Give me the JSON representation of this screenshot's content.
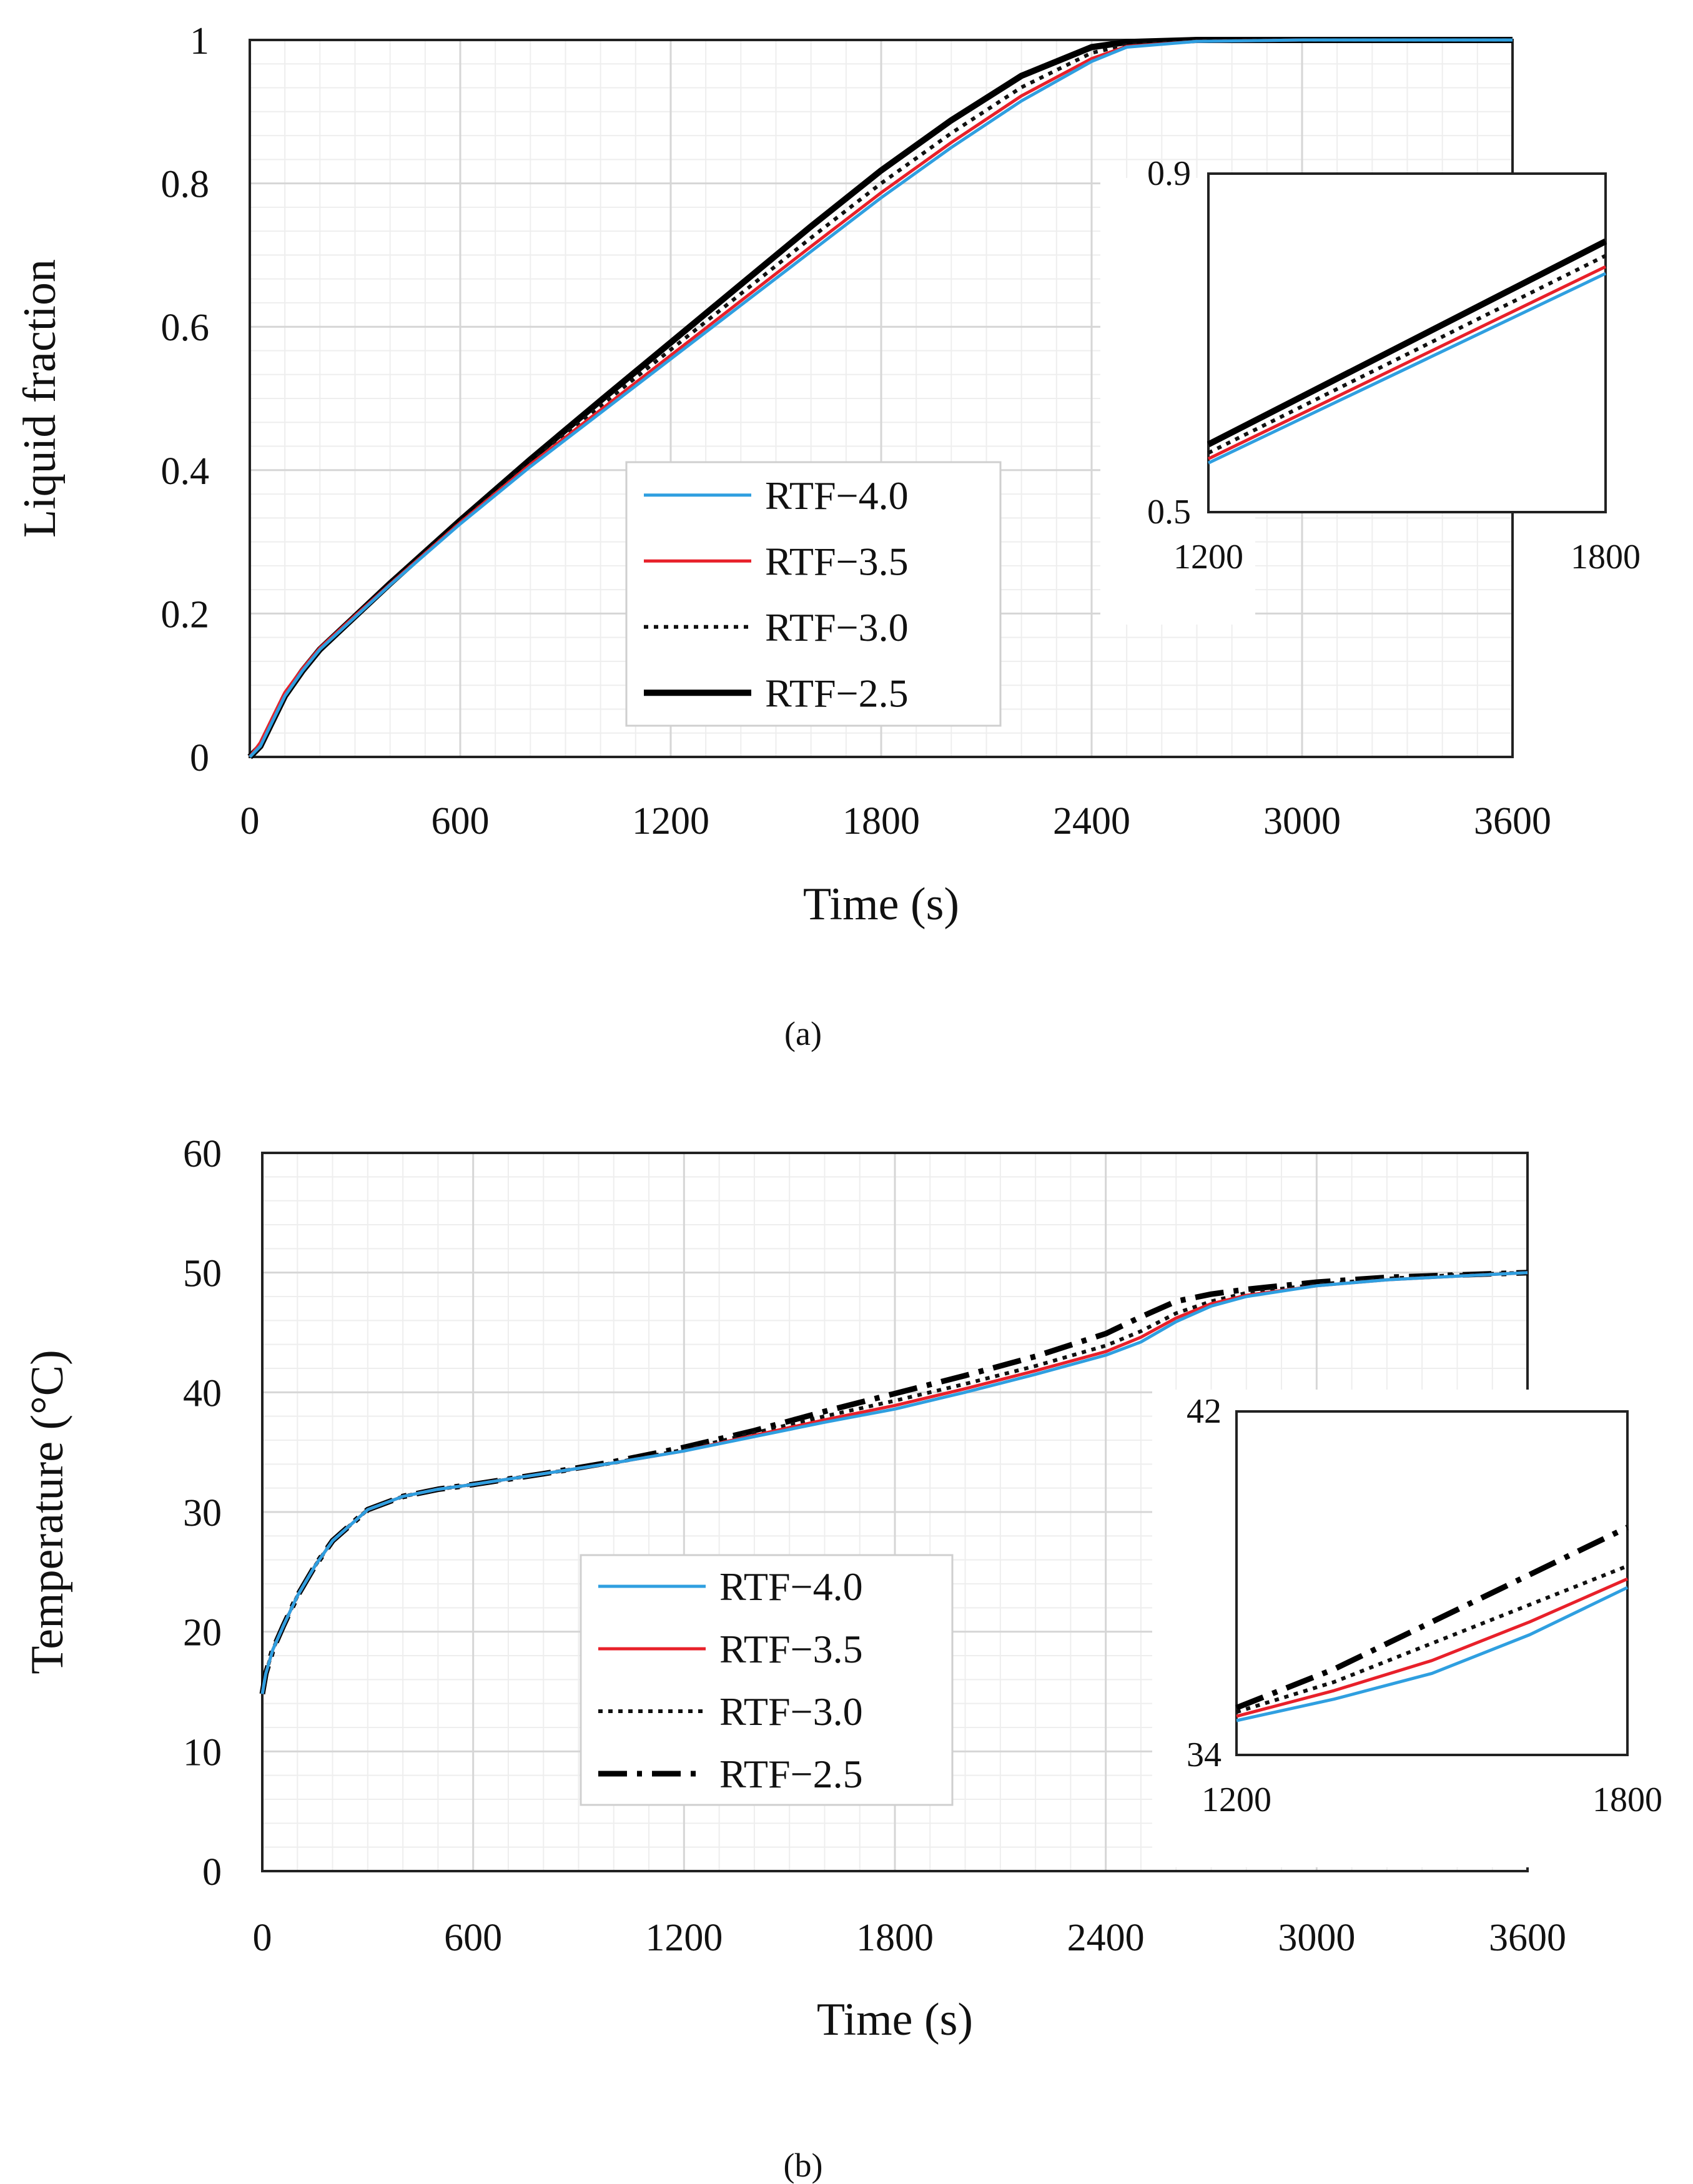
{
  "chart_data": [
    {
      "id": "a",
      "type": "line",
      "caption": "(a)",
      "xlabel": "Time (s)",
      "ylabel": "Liquid fraction",
      "xlim": [
        0,
        3600
      ],
      "ylim": [
        0,
        1
      ],
      "x_ticks": [
        0,
        600,
        1200,
        1800,
        2400,
        3000,
        3600
      ],
      "y_ticks": [
        0,
        0.2,
        0.4,
        0.6,
        0.8,
        1
      ],
      "y_tick_labels": [
        "0",
        "0.2",
        "0.4",
        "0.6",
        "0.8",
        "1"
      ],
      "grid": true,
      "legend_position": "center-bottom",
      "series": [
        {
          "name": "RTF−4.0",
          "color": "#2f9fe0",
          "style": "solid-thin",
          "x": [
            0,
            30,
            60,
            100,
            150,
            200,
            300,
            400,
            600,
            800,
            1000,
            1200,
            1400,
            1600,
            1800,
            2000,
            2200,
            2400,
            2500,
            2700,
            3000,
            3600
          ],
          "y": [
            0,
            0.015,
            0.045,
            0.085,
            0.12,
            0.15,
            0.195,
            0.24,
            0.325,
            0.405,
            0.48,
            0.555,
            0.63,
            0.705,
            0.78,
            0.85,
            0.915,
            0.97,
            0.99,
            0.998,
            1,
            1
          ]
        },
        {
          "name": "RTF−3.5",
          "color": "#e8202a",
          "style": "solid-thin",
          "x": [
            0,
            30,
            60,
            100,
            150,
            200,
            300,
            400,
            600,
            800,
            1000,
            1200,
            1400,
            1600,
            1800,
            2000,
            2200,
            2400,
            2500,
            2700,
            3000,
            3600
          ],
          "y": [
            0,
            0.02,
            0.05,
            0.09,
            0.123,
            0.152,
            0.197,
            0.241,
            0.327,
            0.408,
            0.484,
            0.56,
            0.636,
            0.712,
            0.787,
            0.857,
            0.922,
            0.974,
            0.991,
            0.998,
            1,
            1
          ]
        },
        {
          "name": "RTF−3.0",
          "color": "#111111",
          "style": "dotted",
          "x": [
            0,
            30,
            60,
            100,
            150,
            200,
            300,
            400,
            600,
            800,
            1000,
            1200,
            1400,
            1600,
            1800,
            2000,
            2200,
            2400,
            2500,
            2700,
            3000,
            3600
          ],
          "y": [
            0,
            0.018,
            0.048,
            0.088,
            0.122,
            0.151,
            0.196,
            0.241,
            0.328,
            0.411,
            0.49,
            0.568,
            0.646,
            0.724,
            0.8,
            0.87,
            0.934,
            0.982,
            0.993,
            0.999,
            1,
            1
          ]
        },
        {
          "name": "RTF−2.5",
          "color": "#000000",
          "style": "solid-thick",
          "x": [
            0,
            30,
            60,
            100,
            150,
            200,
            300,
            400,
            600,
            800,
            1000,
            1200,
            1400,
            1600,
            1800,
            2000,
            2200,
            2400,
            2500,
            2700,
            3000,
            3600
          ],
          "y": [
            0,
            0.015,
            0.045,
            0.085,
            0.12,
            0.15,
            0.196,
            0.242,
            0.33,
            0.415,
            0.497,
            0.578,
            0.659,
            0.74,
            0.818,
            0.888,
            0.95,
            0.99,
            0.997,
            1,
            1,
            1
          ]
        }
      ],
      "inset": {
        "xlim": [
          1200,
          1800
        ],
        "ylim": [
          0.5,
          0.9
        ],
        "x_tick_labels": [
          "1200",
          "1800"
        ],
        "y_tick_labels": [
          "0.5",
          "0.9"
        ],
        "series": [
          {
            "name": "RTF−4.0",
            "x": [
              1200,
              1800
            ],
            "y": [
              0.558,
              0.782
            ]
          },
          {
            "name": "RTF−3.5",
            "x": [
              1200,
              1800
            ],
            "y": [
              0.563,
              0.79
            ]
          },
          {
            "name": "RTF−3.0",
            "x": [
              1200,
              1800
            ],
            "y": [
              0.57,
              0.803
            ]
          },
          {
            "name": "RTF−2.5",
            "x": [
              1200,
              1800
            ],
            "y": [
              0.58,
              0.82
            ]
          }
        ]
      }
    },
    {
      "id": "b",
      "type": "line",
      "caption": "(b)",
      "xlabel": "Time (s)",
      "ylabel": "Temperature (°C)",
      "xlim": [
        0,
        3600
      ],
      "ylim": [
        0,
        60
      ],
      "x_ticks": [
        0,
        600,
        1200,
        1800,
        2400,
        3000,
        3600
      ],
      "y_ticks": [
        0,
        10,
        20,
        30,
        40,
        50,
        60
      ],
      "y_tick_labels": [
        "0",
        "10",
        "20",
        "30",
        "40",
        "50",
        "60"
      ],
      "grid": true,
      "legend_position": "center-bottom",
      "series": [
        {
          "name": "RTF−4.0",
          "color": "#2f9fe0",
          "style": "solid-thin",
          "x": [
            0,
            10,
            30,
            60,
            100,
            150,
            200,
            300,
            400,
            500,
            600,
            800,
            1000,
            1200,
            1400,
            1600,
            1800,
            2000,
            2200,
            2400,
            2500,
            2600,
            2700,
            2800,
            3000,
            3200,
            3400,
            3600
          ],
          "y": [
            14.8,
            16.5,
            18.5,
            20.5,
            23,
            25.5,
            27.6,
            30.2,
            31.3,
            31.9,
            32.3,
            33.2,
            34.1,
            35.1,
            36.3,
            37.5,
            38.6,
            40.0,
            41.5,
            43.1,
            44.2,
            45.9,
            47.2,
            48.0,
            48.9,
            49.4,
            49.7,
            50.0
          ]
        },
        {
          "name": "RTF−3.5",
          "color": "#e8202a",
          "style": "solid-thin",
          "x": [
            0,
            10,
            30,
            60,
            100,
            150,
            200,
            300,
            400,
            500,
            600,
            800,
            1000,
            1200,
            1400,
            1600,
            1800,
            2000,
            2200,
            2400,
            2500,
            2600,
            2700,
            2800,
            3000,
            3200,
            3400,
            3600
          ],
          "y": [
            14.8,
            16.5,
            18.5,
            20.5,
            23,
            25.5,
            27.6,
            30.2,
            31.3,
            31.9,
            32.3,
            33.2,
            34.1,
            35.1,
            36.4,
            37.7,
            38.9,
            40.3,
            41.8,
            43.4,
            44.6,
            46.2,
            47.4,
            48.1,
            48.9,
            49.4,
            49.7,
            50.0
          ]
        },
        {
          "name": "RTF−3.0",
          "color": "#111111",
          "style": "dotted",
          "x": [
            0,
            10,
            30,
            60,
            100,
            150,
            200,
            300,
            400,
            500,
            600,
            800,
            1000,
            1200,
            1400,
            1600,
            1800,
            2000,
            2200,
            2400,
            2500,
            2600,
            2700,
            2800,
            3000,
            3200,
            3400,
            3600
          ],
          "y": [
            14.8,
            16.5,
            18.5,
            20.5,
            23,
            25.5,
            27.6,
            30.2,
            31.3,
            31.9,
            32.3,
            33.2,
            34.1,
            35.2,
            36.6,
            38.0,
            39.3,
            40.7,
            42.2,
            43.9,
            45.1,
            46.6,
            47.6,
            48.3,
            49.0,
            49.5,
            49.8,
            50.0
          ]
        },
        {
          "name": "RTF−2.5",
          "color": "#000000",
          "style": "dashdot",
          "x": [
            0,
            10,
            30,
            60,
            100,
            150,
            200,
            300,
            400,
            500,
            600,
            800,
            1000,
            1200,
            1400,
            1600,
            1800,
            2000,
            2200,
            2400,
            2500,
            2600,
            2700,
            2800,
            3000,
            3200,
            3400,
            3600
          ],
          "y": [
            14.8,
            16.5,
            18.5,
            20.5,
            23,
            25.5,
            27.6,
            30.2,
            31.3,
            31.9,
            32.3,
            33.2,
            34.2,
            35.4,
            36.8,
            38.4,
            39.9,
            41.4,
            43.0,
            44.9,
            46.3,
            47.6,
            48.2,
            48.6,
            49.2,
            49.6,
            49.8,
            50.0
          ]
        }
      ],
      "inset": {
        "xlim": [
          1200,
          1800
        ],
        "ylim": [
          34,
          42
        ],
        "x_tick_labels": [
          "1200",
          "1800"
        ],
        "y_tick_labels": [
          "42",
          "34"
        ],
        "series": [
          {
            "name": "RTF−4.0",
            "x": [
              1200,
              1350,
              1500,
              1650,
              1800
            ],
            "y": [
              34.8,
              35.3,
              35.9,
              36.8,
              37.9
            ]
          },
          {
            "name": "RTF−3.5",
            "x": [
              1200,
              1350,
              1500,
              1650,
              1800
            ],
            "y": [
              34.9,
              35.5,
              36.2,
              37.1,
              38.1
            ]
          },
          {
            "name": "RTF−3.0",
            "x": [
              1200,
              1350,
              1500,
              1650,
              1800
            ],
            "y": [
              35.0,
              35.7,
              36.6,
              37.5,
              38.4
            ]
          },
          {
            "name": "RTF−2.5",
            "x": [
              1200,
              1350,
              1500,
              1650,
              1800
            ],
            "y": [
              35.1,
              36.0,
              37.1,
              38.2,
              39.3
            ]
          }
        ]
      }
    }
  ]
}
